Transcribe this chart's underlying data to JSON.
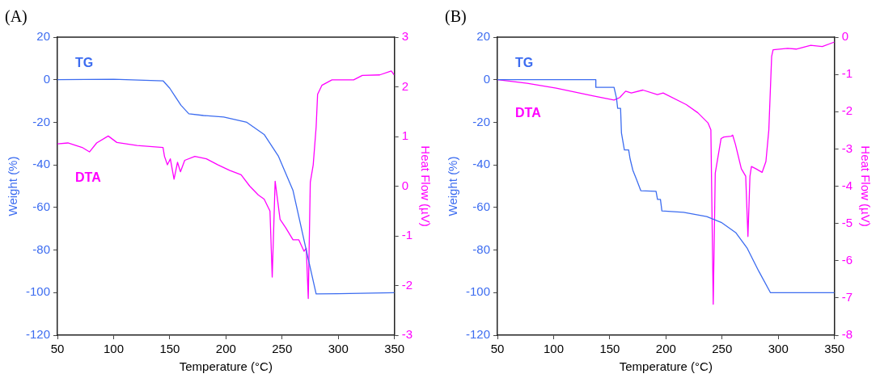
{
  "chart_data": [
    {
      "type": "line",
      "title": "(A)",
      "xlabel": "Temperature (°C)",
      "ylabel": "Weight (%)",
      "y2label": "Heat Flow (µV)",
      "xlim": [
        50,
        350
      ],
      "xticks": [
        50,
        100,
        150,
        200,
        250,
        300,
        350
      ],
      "ylim": [
        -120,
        20
      ],
      "yticks": [
        -120,
        -100,
        -80,
        -60,
        -40,
        -20,
        0,
        20
      ],
      "y2lim": [
        -3,
        3
      ],
      "y2ticks": [
        -3,
        -2,
        -1,
        0,
        1,
        2,
        3
      ],
      "grid": false,
      "legend": false,
      "marker": "none",
      "line_style": "solid",
      "series": [
        {
          "name": "TG",
          "color": "#3c6cf0",
          "x": [
            50,
            100,
            144,
            150,
            155,
            160,
            167,
            180,
            198,
            218.6,
            234,
            246.6,
            259.7,
            270,
            280.3,
            300,
            350
          ],
          "values": [
            0,
            0.2,
            -0.5,
            -4,
            -8,
            -12,
            -16,
            -16.8,
            -17.5,
            -20,
            -25.7,
            -35.8,
            -52,
            -76.5,
            -100.6,
            -100.5,
            -100
          ]
        },
        {
          "name": "DTA",
          "axis": "y2",
          "color": "#ff00ff",
          "x": [
            50,
            59.3,
            72,
            78.5,
            84.9,
            95.2,
            102.9,
            120.9,
            144,
            145.3,
            147.9,
            150.5,
            153.8,
            156.9,
            159.5,
            163.3,
            172.3,
            182.6,
            192.9,
            203.2,
            213.5,
            221.2,
            228.9,
            234,
            239.2,
            241.2,
            243.8,
            248.2,
            253.3,
            259.7,
            264.9,
            269.5,
            271.5,
            273.3,
            275.1,
            277.7,
            280.3,
            281.6,
            285.4,
            294.4,
            300.8,
            313.7,
            321.4,
            336.9,
            347.2,
            349.7
          ],
          "values": [
            0.85,
            0.87,
            0.78,
            0.69,
            0.87,
            1.01,
            0.88,
            0.82,
            0.78,
            0.6,
            0.43,
            0.55,
            0.14,
            0.48,
            0.29,
            0.52,
            0.6,
            0.55,
            0.43,
            0.32,
            0.23,
            0,
            -0.18,
            -0.26,
            -0.5,
            -1.83,
            0.1,
            -0.67,
            -0.84,
            -1.08,
            -1.08,
            -1.31,
            -1.25,
            -2.26,
            0.08,
            0.43,
            1.19,
            1.85,
            2.03,
            2.14,
            2.14,
            2.14,
            2.23,
            2.24,
            2.32,
            2.24
          ]
        }
      ]
    },
    {
      "type": "line",
      "title": "(B)",
      "xlabel": "Temperature (°C)",
      "ylabel": "Weight (%)",
      "y2label": "Heat Flow (µV)",
      "xlim": [
        50,
        350
      ],
      "xticks": [
        50,
        100,
        150,
        200,
        250,
        300,
        350
      ],
      "ylim": [
        -120,
        20
      ],
      "yticks": [
        -120,
        -100,
        -80,
        -60,
        -40,
        -20,
        0,
        20
      ],
      "y2lim": [
        -8,
        0
      ],
      "y2ticks": [
        -8,
        -7,
        -6,
        -5,
        -4,
        -3,
        -2,
        -1,
        0
      ],
      "grid": false,
      "legend": false,
      "marker": "none",
      "line_style": "solid",
      "series": [
        {
          "name": "TG",
          "color": "#3c6cf0",
          "x": [
            50,
            137.6,
            137.6,
            153.8,
            156,
            157,
            159.6,
            160.4,
            163,
            166.8,
            168.1,
            170.6,
            173.7,
            177.6,
            191.2,
            192.5,
            195.1,
            196.4,
            215.7,
            236.3,
            249.2,
            262.1,
            272.4,
            282.7,
            293,
            350
          ],
          "values": [
            0,
            0,
            -3.6,
            -3.6,
            -8.7,
            -13.4,
            -13.4,
            -25,
            -33,
            -33,
            -37.2,
            -42.6,
            -46.7,
            -52.1,
            -52.4,
            -56.2,
            -56.2,
            -61.6,
            -62.3,
            -64.3,
            -67,
            -71.8,
            -79.2,
            -90,
            -100,
            -100
          ]
        },
        {
          "name": "DTA",
          "axis": "y2",
          "color": "#ff00ff",
          "x": [
            50,
            76.5,
            102.3,
            135.7,
            153.8,
            158.9,
            164.1,
            169.2,
            179.5,
            192.4,
            197.5,
            218.1,
            228.4,
            237.4,
            240,
            242.1,
            243.9,
            249.1,
            251.6,
            258.1,
            259.4,
            261.9,
            267.1,
            271,
            273,
            274.8,
            276.1,
            280,
            285.6,
            289,
            291.6,
            294.1,
            295.4,
            308.3,
            316,
            328.9,
            339.2,
            350
          ],
          "values": [
            -1.14,
            -1.24,
            -1.37,
            -1.58,
            -1.69,
            -1.62,
            -1.45,
            -1.5,
            -1.42,
            -1.54,
            -1.5,
            -1.81,
            -2.03,
            -2.3,
            -2.49,
            -7.17,
            -3.65,
            -2.72,
            -2.68,
            -2.66,
            -2.63,
            -2.88,
            -3.53,
            -3.73,
            -5.35,
            -3.73,
            -3.47,
            -3.53,
            -3.63,
            -3.34,
            -2.49,
            -0.52,
            -0.34,
            -0.3,
            -0.32,
            -0.22,
            -0.25,
            -0.13
          ]
        }
      ]
    }
  ]
}
